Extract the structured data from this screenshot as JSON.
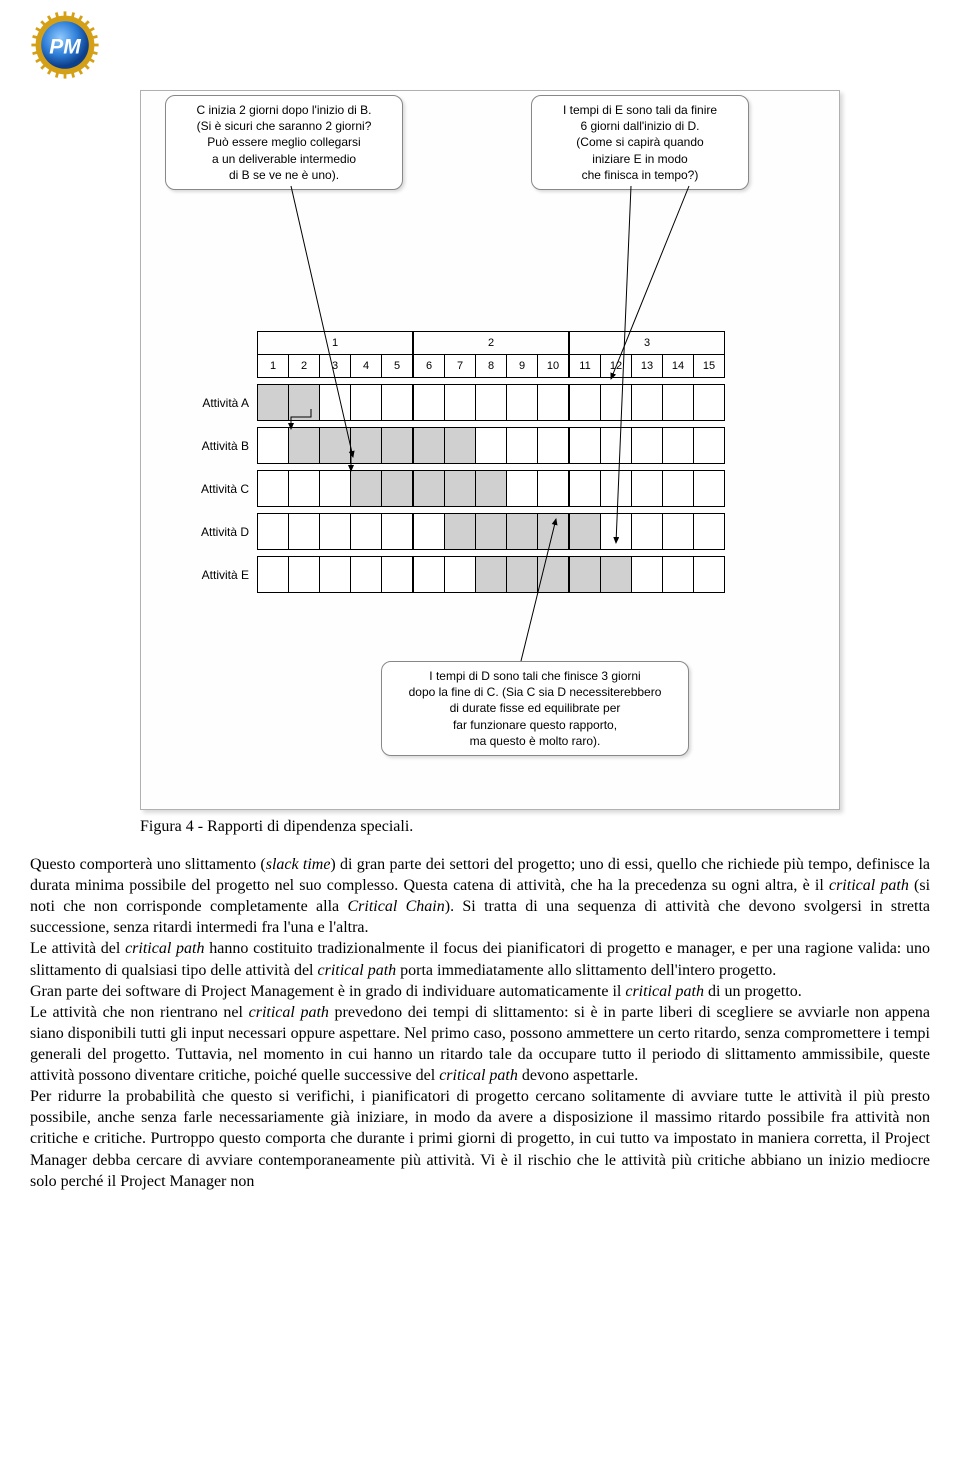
{
  "logo_text": "PM",
  "callouts": {
    "left": "C inizia 2 giorni dopo l'inizio di B.\n(Si è sicuri che saranno 2 giorni?\nPuò essere meglio collegarsi\na un deliverable intermedio\ndi B se ve ne è uno).",
    "right": "I tempi di E sono tali da finire\n6 giorni dall'inizio di D.\n(Come si capirà quando\niniziare E in modo\nche finisca in tempo?)",
    "bottom": "I tempi di D sono tali che finisce 3 giorni\ndopo la fine di C. (Sia C sia D necessiterebbero\ndi durate fisse ed equilibrate per\nfar funzionare questo rapporto,\nma questo è molto raro)."
  },
  "gantt": {
    "weeks": [
      "1",
      "2",
      "3"
    ],
    "days": [
      "1",
      "2",
      "3",
      "4",
      "5",
      "6",
      "7",
      "8",
      "9",
      "10",
      "11",
      "12",
      "13",
      "14",
      "15"
    ],
    "rows": [
      {
        "label": "Attività A",
        "bars": [
          1,
          2
        ]
      },
      {
        "label": "Attività B",
        "bars": [
          2,
          3,
          4,
          5,
          6,
          7
        ]
      },
      {
        "label": "Attività C",
        "bars": [
          4,
          5,
          6,
          7,
          8
        ]
      },
      {
        "label": "Attività D",
        "bars": [
          7,
          8,
          9,
          10,
          11
        ]
      },
      {
        "label": "Attività E",
        "bars": [
          8,
          9,
          10,
          11,
          12
        ]
      }
    ]
  },
  "caption": "Figura 4 - Rapporti di dipendenza speciali.",
  "paragraphs": [
    {
      "spans": [
        {
          "t": "Questo comporterà uno slittamento ("
        },
        {
          "t": "slack time",
          "i": true
        },
        {
          "t": ") di gran parte dei settori del progetto; uno di essi, quello che richiede più tempo, definisce la durata minima possibile del progetto nel suo complesso. Questa catena di attività, che ha la precedenza su ogni altra, è il "
        },
        {
          "t": "critical path",
          "i": true
        },
        {
          "t": " (si noti che non corrisponde completamente alla "
        },
        {
          "t": "Critical Chain",
          "i": true
        },
        {
          "t": "). Si tratta di una sequenza di attività che devono svolgersi in stretta successione, senza ritardi intermedi fra l'una e l'altra."
        }
      ]
    },
    {
      "spans": [
        {
          "t": "Le attività del "
        },
        {
          "t": "critical path",
          "i": true
        },
        {
          "t": " hanno costituito tradizionalmente il focus dei pianificatori di progetto e manager, e per una ragione valida: uno slittamento di qualsiasi tipo delle attività del "
        },
        {
          "t": "critical path",
          "i": true
        },
        {
          "t": " porta immediatamente allo slittamento dell'intero progetto."
        }
      ]
    },
    {
      "spans": [
        {
          "t": "Gran parte dei software di Project Management è in grado di individuare automaticamente il "
        },
        {
          "t": "critical path",
          "i": true
        },
        {
          "t": " di un progetto."
        }
      ]
    },
    {
      "spans": [
        {
          "t": "Le attività che non rientrano nel "
        },
        {
          "t": "critical path",
          "i": true
        },
        {
          "t": " prevedono dei tempi di slittamento: si è in parte liberi di scegliere se avviarle non appena siano disponibili tutti gli input necessari oppure aspettare. Nel primo caso, possono ammettere un certo ritardo, senza compromettere i tempi generali del progetto. Tuttavia, nel momento in cui hanno un ritardo tale da occupare tutto il periodo di slittamento ammissibile, queste attività possono diventare critiche, poiché quelle successive del "
        },
        {
          "t": "critical path",
          "i": true
        },
        {
          "t": " devono aspettarle."
        }
      ]
    },
    {
      "spans": [
        {
          "t": "Per ridurre la probabilità che questo si verifichi, i pianificatori di progetto cercano solitamente di avviare tutte le attività il più presto possibile, anche senza farle necessariamente già iniziare, in modo da avere a disposizione il massimo ritardo possibile fra attività non critiche e critiche. Purtroppo questo comporta che durante i primi giorni di progetto, in cui tutto va impostato in maniera corretta, il Project Manager debba cercare di avviare contemporaneamente più attività. Vi è il rischio che le attività più critiche abbiano un inizio mediocre solo perché il Project Manager non"
        }
      ]
    }
  ]
}
